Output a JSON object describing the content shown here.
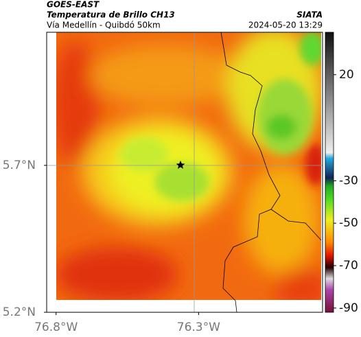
{
  "header": {
    "source": "GOES-EAST",
    "product": "Temperatura de Brillo CH13",
    "location": "Vía Medellín - Quibdó 50km",
    "agency": "SIATA",
    "timestamp": "2024-05-20 13:29"
  },
  "map": {
    "xlim": [
      -76.833,
      -75.865
    ],
    "ylim": [
      5.2,
      6.153
    ],
    "lat_ticks": [
      {
        "value": 5.7,
        "label": "5.7°N"
      },
      {
        "value": 5.2,
        "label": "5.2°N"
      }
    ],
    "lon_ticks": [
      {
        "value": -76.8,
        "label": "76.8°W"
      },
      {
        "value": -76.3,
        "label": "76.3°W"
      }
    ]
  },
  "colorbar": {
    "range": [
      40,
      -92
    ],
    "ticks": [
      20,
      -30,
      -50,
      -70,
      -90
    ]
  }
}
